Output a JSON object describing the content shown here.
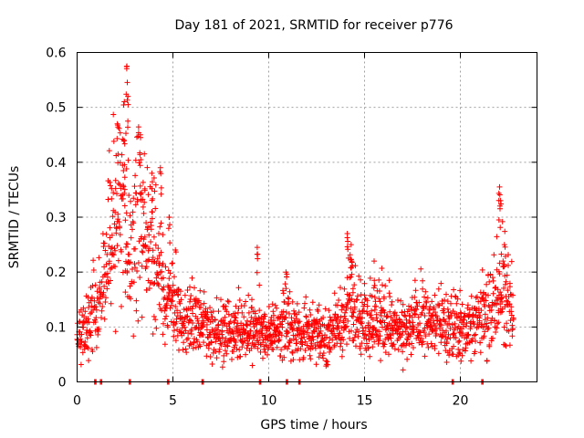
{
  "chart_data": {
    "type": "scatter",
    "title": "Day 181 of 2021, SRMTID for receiver p776",
    "xlabel": "GPS time / hours",
    "ylabel": "SRMTID / TECUs",
    "xlim": [
      0,
      24
    ],
    "ylim": [
      0,
      0.6
    ],
    "grid": true,
    "x_ticks": [
      0,
      5,
      10,
      15,
      20
    ],
    "x_tick_labels": [
      "0",
      "5",
      "10",
      "15",
      "20"
    ],
    "y_ticks": [
      0,
      0.1,
      0.2,
      0.3,
      0.4,
      0.5,
      0.6
    ],
    "y_tick_labels": [
      "0",
      "0.1",
      "0.2",
      "0.3",
      "0.4",
      "0.5",
      "0.6"
    ],
    "marker": "plus",
    "marker_color": "#ff0000",
    "profile": [
      [
        0.0,
        0.085
      ],
      [
        0.5,
        0.09
      ],
      [
        1.0,
        0.13
      ],
      [
        1.5,
        0.2
      ],
      [
        1.9,
        0.29
      ],
      [
        2.4,
        0.33
      ],
      [
        2.8,
        0.22
      ],
      [
        3.2,
        0.33
      ],
      [
        3.6,
        0.22
      ],
      [
        4.1,
        0.25
      ],
      [
        4.5,
        0.15
      ],
      [
        5.0,
        0.15
      ],
      [
        5.5,
        0.1
      ],
      [
        6.0,
        0.11
      ],
      [
        7.0,
        0.09
      ],
      [
        8.0,
        0.09
      ],
      [
        9.0,
        0.1
      ],
      [
        10.0,
        0.09
      ],
      [
        11.0,
        0.1
      ],
      [
        12.0,
        0.09
      ],
      [
        13.0,
        0.08
      ],
      [
        13.8,
        0.11
      ],
      [
        14.3,
        0.15
      ],
      [
        15.0,
        0.11
      ],
      [
        16.0,
        0.11
      ],
      [
        17.0,
        0.09
      ],
      [
        18.0,
        0.11
      ],
      [
        19.0,
        0.1
      ],
      [
        20.0,
        0.09
      ],
      [
        21.0,
        0.11
      ],
      [
        21.6,
        0.12
      ],
      [
        22.2,
        0.16
      ],
      [
        22.8,
        0.12
      ]
    ],
    "peaks": [
      {
        "x": 2.1,
        "y": 0.47
      },
      {
        "x": 2.45,
        "y": 0.44
      },
      {
        "x": 2.6,
        "y": 0.575
      },
      {
        "x": 2.65,
        "y": 0.52
      },
      {
        "x": 3.3,
        "y": 0.45
      },
      {
        "x": 3.9,
        "y": 0.38
      },
      {
        "x": 4.35,
        "y": 0.39
      },
      {
        "x": 4.8,
        "y": 0.3
      },
      {
        "x": 9.4,
        "y": 0.245
      },
      {
        "x": 10.9,
        "y": 0.2
      },
      {
        "x": 14.1,
        "y": 0.27
      },
      {
        "x": 14.3,
        "y": 0.25
      },
      {
        "x": 15.5,
        "y": 0.22
      },
      {
        "x": 22.05,
        "y": 0.355
      },
      {
        "x": 22.1,
        "y": 0.33
      },
      {
        "x": 22.3,
        "y": 0.25
      }
    ],
    "zero_points": [
      0.95,
      1.25,
      2.75,
      4.75,
      6.55,
      9.55,
      10.95,
      11.6,
      19.6,
      21.15
    ]
  }
}
